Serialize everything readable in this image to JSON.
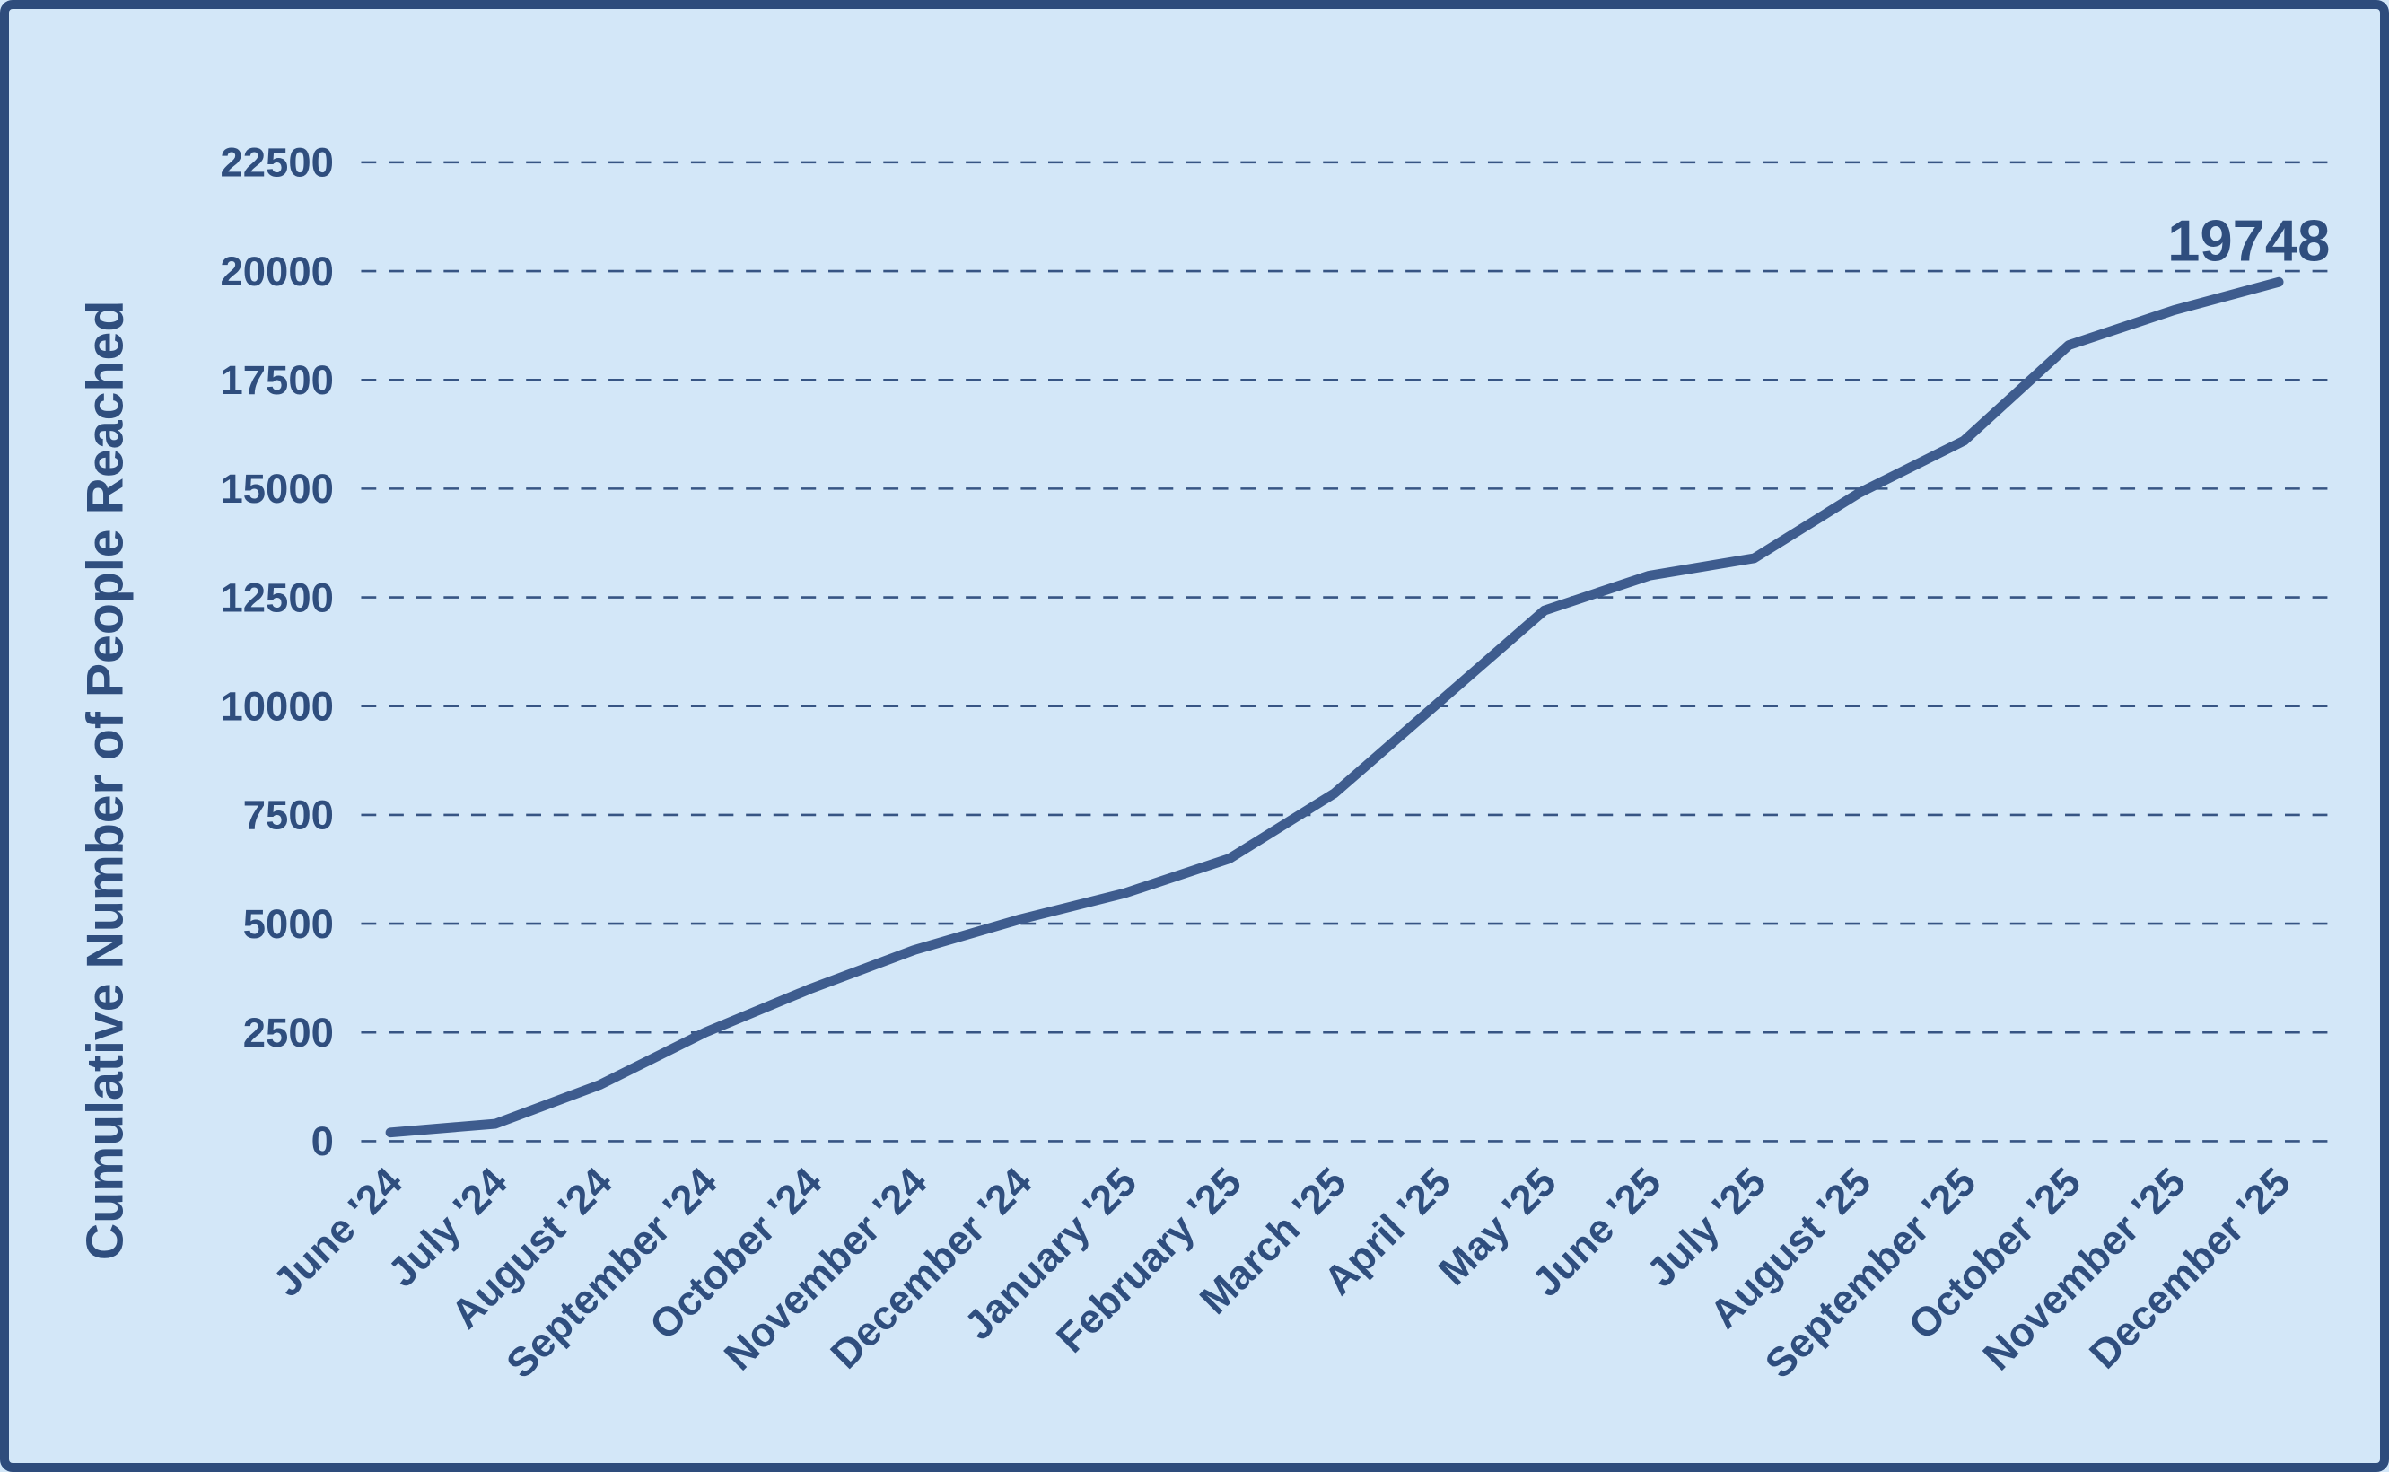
{
  "chart_data": {
    "type": "line",
    "title": "",
    "xlabel": "",
    "ylabel": "Cumulative Number of People Reached",
    "categories": [
      "June '24",
      "July '24",
      "August '24",
      "September '24",
      "October '24",
      "November '24",
      "December '24",
      "January '25",
      "February '25",
      "March '25",
      "April '25",
      "May '25",
      "June '25",
      "July '25",
      "August '25",
      "September '25",
      "October '25",
      "November '25",
      "December '25"
    ],
    "values": [
      200,
      400,
      1300,
      2500,
      3500,
      4400,
      5100,
      5700,
      6500,
      8000,
      10100,
      12200,
      13000,
      13400,
      14900,
      16100,
      18300,
      19100,
      19748
    ],
    "yticks": [
      0,
      2500,
      5000,
      7500,
      10000,
      12500,
      15000,
      17500,
      20000,
      22500
    ],
    "ylim": [
      0,
      22500
    ],
    "grid": "dashed horizontal",
    "legend": "none",
    "annotation": {
      "text": "19748",
      "point": "December '25"
    },
    "colors": {
      "background": "#d3e7f8",
      "line": "#3e5c8e",
      "text": "#2f4e7e",
      "border": "#2e4c7c"
    }
  }
}
